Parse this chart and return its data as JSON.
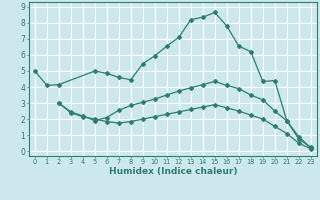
{
  "xlabel": "Humidex (Indice chaleur)",
  "xlim": [
    -0.5,
    23.5
  ],
  "ylim": [
    -0.3,
    9.3
  ],
  "xticks": [
    0,
    1,
    2,
    3,
    4,
    5,
    6,
    7,
    8,
    9,
    10,
    11,
    12,
    13,
    14,
    15,
    16,
    17,
    18,
    19,
    20,
    21,
    22,
    23
  ],
  "yticks": [
    0,
    1,
    2,
    3,
    4,
    5,
    6,
    7,
    8,
    9
  ],
  "bg_color": "#cce8ec",
  "grid_color": "#ffffff",
  "line_color": "#2e7d6e",
  "curves": [
    {
      "x": [
        0,
        1,
        2,
        5,
        6,
        7,
        8,
        9,
        10,
        11,
        12,
        13,
        14,
        15,
        16,
        17,
        18,
        19,
        20,
        21,
        22,
        23
      ],
      "y": [
        5.0,
        4.1,
        4.15,
        5.0,
        4.85,
        4.6,
        4.45,
        5.45,
        5.95,
        6.55,
        7.1,
        8.2,
        8.35,
        8.65,
        7.8,
        6.55,
        6.2,
        4.35,
        4.4,
        1.9,
        0.75,
        0.25
      ]
    },
    {
      "x": [
        2,
        3,
        4,
        5,
        6,
        7,
        8,
        9,
        10,
        11,
        12,
        13,
        14,
        15,
        16,
        17,
        18,
        19,
        20,
        21,
        22,
        23
      ],
      "y": [
        3.0,
        2.45,
        2.2,
        1.9,
        2.1,
        2.55,
        2.85,
        3.05,
        3.25,
        3.5,
        3.75,
        3.95,
        4.15,
        4.35,
        4.1,
        3.9,
        3.5,
        3.2,
        2.5,
        1.9,
        0.9,
        0.2
      ]
    },
    {
      "x": [
        2,
        3,
        4,
        5,
        6,
        7,
        8,
        9,
        10,
        11,
        12,
        13,
        14,
        15,
        16,
        17,
        18,
        19,
        20,
        21,
        22,
        23
      ],
      "y": [
        3.0,
        2.4,
        2.15,
        2.0,
        1.85,
        1.75,
        1.85,
        2.0,
        2.15,
        2.3,
        2.45,
        2.6,
        2.75,
        2.9,
        2.7,
        2.5,
        2.25,
        2.0,
        1.55,
        1.1,
        0.5,
        0.15
      ]
    }
  ]
}
